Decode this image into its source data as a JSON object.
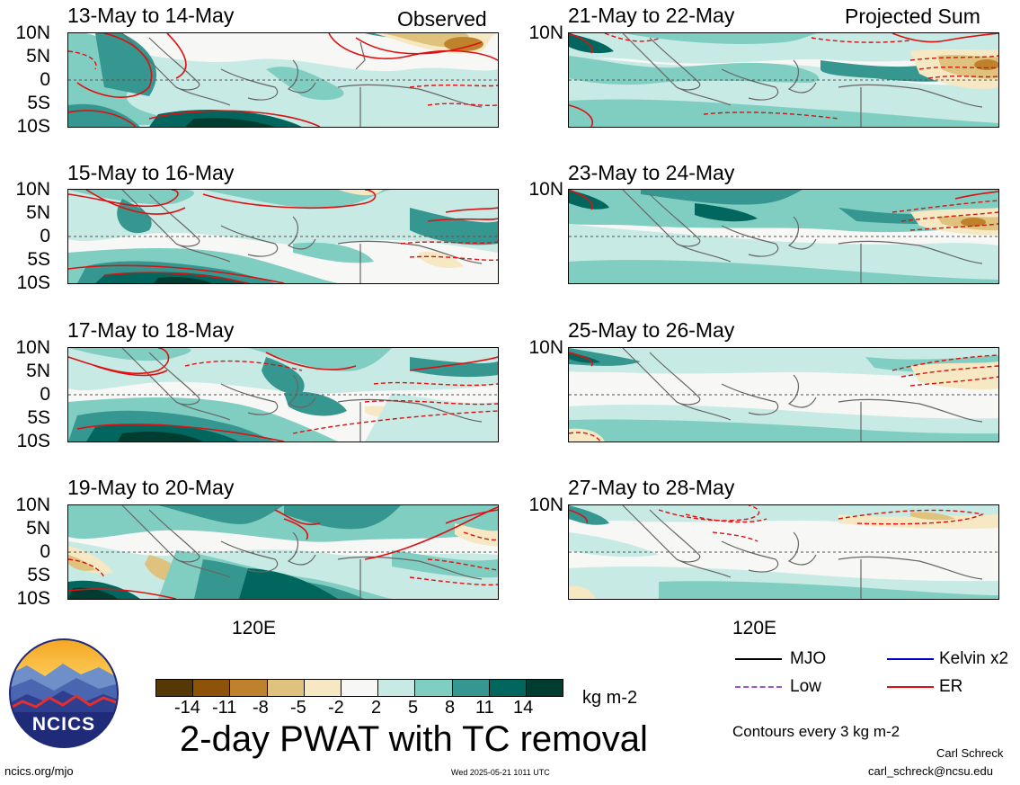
{
  "left_header": "Observed",
  "right_header": "Projected Sum",
  "panels_left": [
    {
      "date": "13-May to 14-May"
    },
    {
      "date": "15-May to 16-May"
    },
    {
      "date": "17-May to 18-May"
    },
    {
      "date": "19-May to 20-May"
    }
  ],
  "panels_right": [
    {
      "date": "21-May to 22-May"
    },
    {
      "date": "23-May to 24-May"
    },
    {
      "date": "25-May to 26-May"
    },
    {
      "date": "27-May to 28-May"
    }
  ],
  "lat_labels": [
    "10N",
    "5N",
    "0",
    "5S",
    "10S"
  ],
  "lon_label": "120E",
  "colorbar": {
    "colors": [
      "#553805",
      "#8c5309",
      "#bf822c",
      "#dfc27e",
      "#f5e8c3",
      "#f7f7f5",
      "#c7eae5",
      "#80cdc1",
      "#35978f",
      "#01665e",
      "#003c30"
    ],
    "labels": [
      "-14",
      "-11",
      "-8",
      "-5",
      "-2",
      "2",
      "5",
      "8",
      "11",
      "14"
    ],
    "units": "kg m-2"
  },
  "title": "2-day PWAT with TC removal",
  "legend": [
    {
      "label": "MJO",
      "color": "#000000"
    },
    {
      "label": "Kelvin x2",
      "color": "#0000cc"
    },
    {
      "label": "Low",
      "color": "#9955cc"
    },
    {
      "label": "ER",
      "color": "#dd1111"
    }
  ],
  "contour_note": "Contours every 3 kg m-2",
  "logo_text": "NCICS",
  "url_left": "ncics.org/mjo",
  "timestamp": "Wed 2025-05-21 1011 UTC",
  "author": "Carl Schreck",
  "email": "carl_schreck@ncsu.edu"
}
